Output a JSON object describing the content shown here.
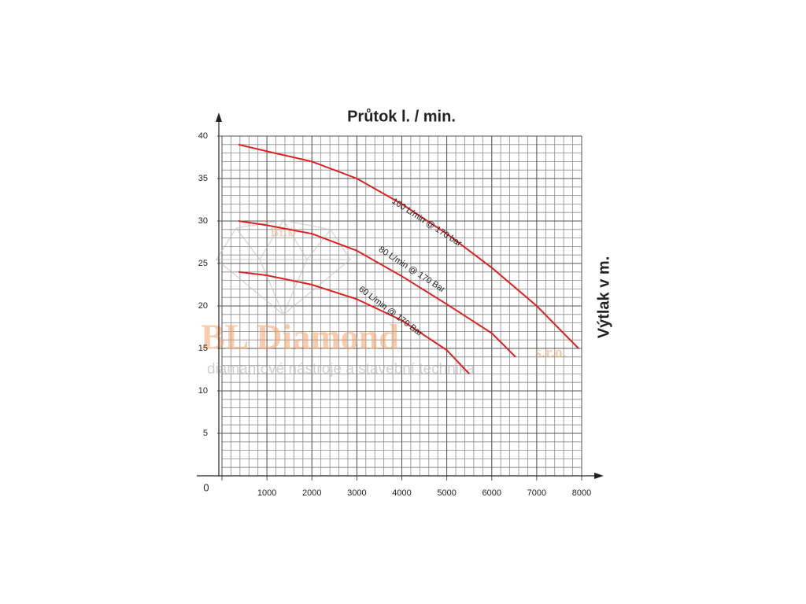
{
  "chart_data": {
    "type": "line",
    "title": "Průtok l. / min.",
    "y_label": "Výtlak v m.",
    "watermark": "BL Diamond",
    "watermark_suffix": "s.r.o.",
    "watermark_tagline": "diamantové nástroje a stavební technika",
    "watermark_logo": "BLD",
    "xlim": [
      0,
      8000
    ],
    "ylim": [
      0,
      40
    ],
    "xticks": [
      0,
      1000,
      2000,
      3000,
      4000,
      5000,
      6000,
      7000,
      8000
    ],
    "yticks": [
      5,
      10,
      15,
      20,
      25,
      30,
      35,
      40
    ],
    "grid": true,
    "x_minor_step": 200,
    "y_minor_step": 1,
    "series": [
      {
        "name": "100 L/min @ 170 bar",
        "color": "#e02020",
        "x": [
          370,
          1000,
          2000,
          3000,
          4000,
          5000,
          6000,
          7000,
          7930
        ],
        "values": [
          39,
          38.2,
          37,
          35,
          32,
          28.5,
          24.5,
          20,
          15
        ]
      },
      {
        "name": "80 L/min @ 170 Bar",
        "color": "#e02020",
        "x": [
          370,
          1000,
          2000,
          3000,
          4000,
          5000,
          6000,
          6530
        ],
        "values": [
          30,
          29.5,
          28.5,
          26.5,
          23.5,
          20.2,
          16.8,
          14
        ]
      },
      {
        "name": "60 L/min @ 170 Bar",
        "color": "#e02020",
        "x": [
          370,
          1000,
          2000,
          3000,
          4000,
          5000,
          5500
        ],
        "values": [
          24,
          23.6,
          22.5,
          20.8,
          18.3,
          14.8,
          12
        ]
      }
    ]
  }
}
